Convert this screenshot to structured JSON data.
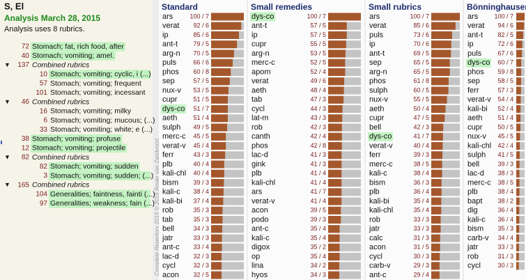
{
  "header": {
    "title": "S, El",
    "subtitle": "Analysis March 28, 2015",
    "info": "Analysis uses 8 rubrics."
  },
  "watermark": "Complete Repertory 2015 © 2015 Roger van Zandvoort",
  "rubrics": [
    {
      "count": 72,
      "label": "Stomach; fat, rich food, after",
      "level": 0,
      "group": false,
      "highlight": true
    },
    {
      "count": 40,
      "label": "Stomach; vomiting; amel.",
      "level": 0,
      "group": false,
      "highlight": true
    },
    {
      "count": 137,
      "label": "Combined rubrics",
      "level": 0,
      "group": true,
      "highlight": false
    },
    {
      "count": 10,
      "label": "Stomach; vomiting; cyclic, i (...)",
      "level": 1,
      "group": false,
      "highlight": true
    },
    {
      "count": 57,
      "label": "Stomach; vomiting; frequent",
      "level": 1,
      "group": false,
      "highlight": false
    },
    {
      "count": 101,
      "label": "Stomach; vomiting; incessant",
      "level": 1,
      "group": false,
      "highlight": false
    },
    {
      "count": 46,
      "label": "Combined rubrics",
      "level": 0,
      "group": true,
      "highlight": false
    },
    {
      "count": 16,
      "label": "Stomach; vomiting; milky",
      "level": 1,
      "group": false,
      "highlight": false
    },
    {
      "count": 6,
      "label": "Stomach; vomiting; mucous; (...)",
      "level": 1,
      "group": false,
      "highlight": false
    },
    {
      "count": 33,
      "label": "Stomach; vomiting; white; e (...)",
      "level": 1,
      "group": false,
      "highlight": false
    },
    {
      "count": 38,
      "label": "Stomach; vomiting; profuse",
      "level": 0,
      "group": false,
      "highlight": true
    },
    {
      "count": 12,
      "label": "Stomach; vomiting; projectile",
      "level": 0,
      "group": false,
      "highlight": true
    },
    {
      "count": 82,
      "label": "Combined rubrics",
      "level": 0,
      "group": true,
      "highlight": false
    },
    {
      "count": 82,
      "label": "Stomach; vomiting; sudden",
      "level": 1,
      "group": false,
      "highlight": true
    },
    {
      "count": 3,
      "label": "Stomach; vomiting; sudden; (...)",
      "level": 1,
      "group": false,
      "highlight": true
    },
    {
      "count": 165,
      "label": "Combined rubrics",
      "level": 0,
      "group": true,
      "highlight": false
    },
    {
      "count": 104,
      "label": "Generalities; faintness, fainti (...)",
      "level": 1,
      "group": false,
      "highlight": true
    },
    {
      "count": 97,
      "label": "Generalities; weakness; fain (...)",
      "level": 1,
      "group": false,
      "highlight": true
    }
  ],
  "chart_data": [
    {
      "type": "bar",
      "title": "Standard",
      "color": "#a5572c",
      "track_color": "#c4c4c4",
      "xlim": [
        0,
        100
      ],
      "highlight": "dys-co",
      "categories": [
        "ars",
        "verat",
        "ip",
        "ant-t",
        "arg-n",
        "puls",
        "phos",
        "sep",
        "nux-v",
        "cupr",
        "dys-co",
        "aeth",
        "sulph",
        "merc-c",
        "verat-v",
        "ferr",
        "plb",
        "kali-chl",
        "bism",
        "kali-c",
        "kali-bi",
        "rob",
        "tab",
        "bell",
        "jatr",
        "ant-c",
        "lac-d",
        "cycl",
        "acon"
      ],
      "values": [
        100,
        92,
        85,
        79,
        70,
        66,
        60,
        57,
        53,
        51,
        51,
        51,
        49,
        45,
        45,
        43,
        40,
        40,
        39,
        38,
        37,
        35,
        35,
        34,
        33,
        33,
        32,
        32,
        32
      ],
      "value_labels": [
        "100 / 7",
        "92 / 6",
        "85 / 6",
        "79 / 5",
        "70 / 5",
        "66 / 6",
        "60 / 8",
        "57 / 5",
        "53 / 5",
        "51 / 5",
        "51 / 7",
        "51 / 4",
        "49 / 5",
        "45 / 5",
        "45 / 4",
        "43 / 3",
        "40 / 4",
        "40 / 4",
        "39 / 3",
        "38 / 4",
        "37 / 4",
        "35 / 3",
        "35 / 3",
        "34 / 3",
        "33 / 3",
        "33 / 4",
        "32 / 3",
        "32 / 3",
        "32 / 5"
      ]
    },
    {
      "type": "bar",
      "title": "Small remedies",
      "color": "#a5572c",
      "track_color": "#c4c4c4",
      "xlim": [
        0,
        100
      ],
      "highlight": "dys-co",
      "categories": [
        "dys-co",
        "ant-t",
        "ip",
        "cupr",
        "arg-n",
        "merc-c",
        "apom",
        "verat",
        "aeth",
        "tab",
        "cycl",
        "lat-m",
        "rob",
        "canth",
        "phos",
        "lac-d",
        "gink",
        "plb",
        "kali-chl",
        "ars",
        "verat-v",
        "acon",
        "podo",
        "ant-c",
        "kali-c",
        "digox",
        "op",
        "lina",
        "hyos"
      ],
      "values": [
        100,
        57,
        57,
        55,
        53,
        52,
        52,
        49,
        48,
        47,
        44,
        43,
        42,
        42,
        42,
        41,
        41,
        41,
        41,
        41,
        41,
        39,
        39,
        35,
        35,
        35,
        35,
        34,
        34
      ],
      "value_labels": [
        "100 / 7",
        "57 / 5",
        "57 / 5",
        "55 / 5",
        "53 / 5",
        "52 / 5",
        "52 / 4",
        "49 / 6",
        "48 / 4",
        "47 / 3",
        "44 / 3",
        "43 / 3",
        "42 / 3",
        "42 / 4",
        "42 / 8",
        "41 / 3",
        "41 / 3",
        "41 / 4",
        "41 / 4",
        "41 / 7",
        "41 / 4",
        "39 / 5",
        "39 / 3",
        "35 / 4",
        "35 / 4",
        "35 / 2",
        "35 / 4",
        "34 / 2",
        "34 / 3"
      ]
    },
    {
      "type": "bar",
      "title": "Small rubrics",
      "color": "#a5572c",
      "track_color": "#c4c4c4",
      "xlim": [
        0,
        100
      ],
      "highlight": "dys-co",
      "categories": [
        "ars",
        "verat",
        "puls",
        "ip",
        "ant-t",
        "sep",
        "arg-n",
        "phos",
        "sulph",
        "nux-v",
        "aeth",
        "cupr",
        "bell",
        "dys-co",
        "verat-v",
        "ferr",
        "merc-c",
        "kali-c",
        "bism",
        "plb",
        "kali-bi",
        "kali-chl",
        "rob",
        "jatr",
        "calc",
        "acon",
        "cycl",
        "carb-v",
        "ant-c"
      ],
      "values": [
        100,
        85,
        73,
        70,
        69,
        65,
        65,
        61,
        60,
        55,
        50,
        47,
        42,
        41,
        40,
        39,
        38,
        38,
        36,
        36,
        35,
        35,
        33,
        33,
        31,
        31,
        30,
        29,
        29
      ],
      "value_labels": [
        "100 / 7",
        "85 / 6",
        "73 / 6",
        "70 / 6",
        "69 / 5",
        "65 / 5",
        "65 / 5",
        "61 / 8",
        "60 / 5",
        "55 / 5",
        "50 / 4",
        "47 / 5",
        "42 / 3",
        "41 / 7",
        "40 / 4",
        "39 / 3",
        "38 / 5",
        "38 / 4",
        "36 / 3",
        "36 / 4",
        "35 / 4",
        "35 / 4",
        "33 / 3",
        "33 / 3",
        "31 / 3",
        "31 / 5",
        "30 / 3",
        "29 / 3",
        "29 / 4"
      ]
    },
    {
      "type": "bar",
      "title": "Bönninghausen",
      "color": "#a5572c",
      "track_color": "#c4c4c4",
      "xlim": [
        0,
        100
      ],
      "highlight": "dys-co",
      "categories": [
        "ars",
        "verat",
        "ant-t",
        "ip",
        "puls",
        "dys-co",
        "phos",
        "sep",
        "ferr",
        "verat-v",
        "kali-bi",
        "aeth",
        "cupr",
        "nux-v",
        "kali-chl",
        "sulph",
        "bell",
        "lac-d",
        "merc-c",
        "plb",
        "bapt",
        "dig",
        "kali-c",
        "bism",
        "carb-v",
        "jatr",
        "rob",
        "cycl"
      ],
      "values": [
        100,
        94,
        82,
        72,
        67,
        60,
        59,
        58,
        57,
        54,
        52,
        51,
        50,
        45,
        42,
        41,
        39,
        38,
        38,
        38,
        38,
        36,
        36,
        35,
        34,
        33,
        31,
        30
      ],
      "value_labels": [
        "100 / 7",
        "94 / 6",
        "82 / 5",
        "72 / 6",
        "67 / 6",
        "60 / 7",
        "59 / 8",
        "58 / 5",
        "57 / 3",
        "54 / 4",
        "52 / 4",
        "51 / 4",
        "50 / 5",
        "45 / 5",
        "42 / 4",
        "41 / 5",
        "39 / 3",
        "38 / 3",
        "38 / 5",
        "38 / 4",
        "38 / 2",
        "36 / 4",
        "36 / 4",
        "35 / 3",
        "34 / 4",
        "33 / 3",
        "31 / 3",
        "30 / 3"
      ]
    }
  ]
}
